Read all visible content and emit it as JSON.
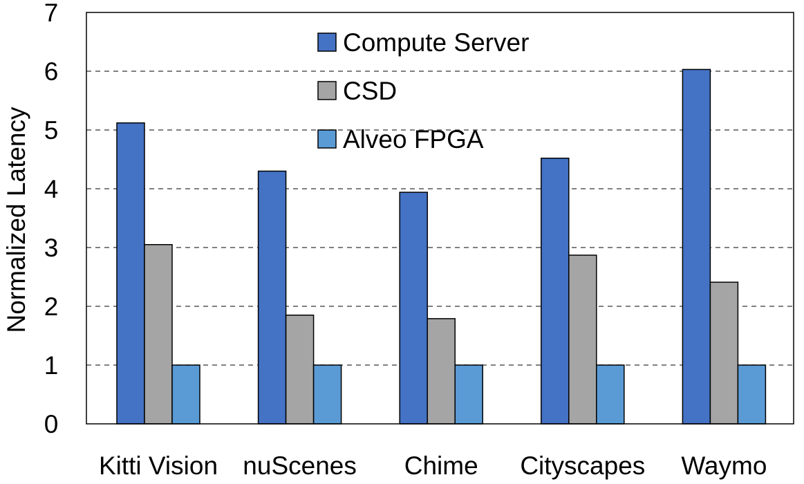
{
  "chart_data": {
    "type": "bar",
    "title": "",
    "xlabel": "",
    "ylabel": "Normalized Latency",
    "ylim": [
      0,
      7
    ],
    "yticks": [
      "0",
      "1",
      "2",
      "3",
      "4",
      "5",
      "6",
      "7"
    ],
    "grid": "horizontal-dashed",
    "legend_position": "top-center",
    "categories": [
      "Kitti Vision",
      "nuScenes",
      "Chime",
      "Cityscapes",
      "Waymo"
    ],
    "series": [
      {
        "name": "Compute Server",
        "color": "#4472C4",
        "values": [
          5.12,
          4.3,
          3.94,
          4.52,
          6.03
        ]
      },
      {
        "name": "CSD",
        "color": "#A5A5A5",
        "values": [
          3.05,
          1.85,
          1.79,
          2.87,
          2.41
        ]
      },
      {
        "name": "Alveo FPGA",
        "color": "#5B9BD5",
        "values": [
          1.0,
          1.0,
          1.0,
          1.0,
          1.0
        ]
      }
    ]
  }
}
